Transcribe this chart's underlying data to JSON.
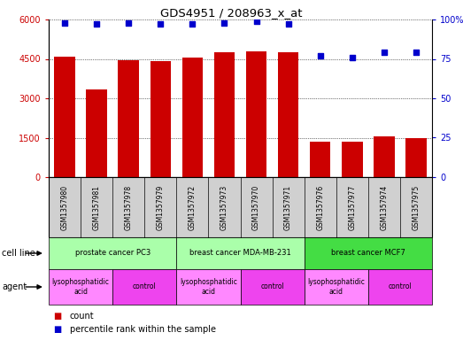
{
  "title": "GDS4951 / 208963_x_at",
  "samples": [
    "GSM1357980",
    "GSM1357981",
    "GSM1357978",
    "GSM1357979",
    "GSM1357972",
    "GSM1357973",
    "GSM1357970",
    "GSM1357971",
    "GSM1357976",
    "GSM1357977",
    "GSM1357974",
    "GSM1357975"
  ],
  "counts": [
    4600,
    3350,
    4450,
    4400,
    4550,
    4750,
    4800,
    4750,
    1350,
    1350,
    1550,
    1500
  ],
  "percentiles": [
    98,
    97,
    98,
    97,
    97,
    98,
    99,
    97,
    77,
    76,
    79,
    79
  ],
  "bar_color": "#cc0000",
  "dot_color": "#0000cc",
  "ylim_left": [
    0,
    6000
  ],
  "ylim_right": [
    0,
    100
  ],
  "yticks_left": [
    0,
    1500,
    3000,
    4500,
    6000
  ],
  "yticks_right": [
    0,
    25,
    50,
    75,
    100
  ],
  "cell_lines": [
    {
      "label": "prostate cancer PC3",
      "start": 0,
      "end": 4,
      "color": "#aaffaa"
    },
    {
      "label": "breast cancer MDA-MB-231",
      "start": 4,
      "end": 8,
      "color": "#aaffaa"
    },
    {
      "label": "breast cancer MCF7",
      "start": 8,
      "end": 12,
      "color": "#44dd44"
    }
  ],
  "agents": [
    {
      "label": "lysophosphatidic\nacid",
      "start": 0,
      "end": 2,
      "color": "#ff88ff"
    },
    {
      "label": "control",
      "start": 2,
      "end": 4,
      "color": "#ee44ee"
    },
    {
      "label": "lysophosphatidic\nacid",
      "start": 4,
      "end": 6,
      "color": "#ff88ff"
    },
    {
      "label": "control",
      "start": 6,
      "end": 8,
      "color": "#ee44ee"
    },
    {
      "label": "lysophosphatidic\nacid",
      "start": 8,
      "end": 10,
      "color": "#ff88ff"
    },
    {
      "label": "control",
      "start": 10,
      "end": 12,
      "color": "#ee44ee"
    }
  ],
  "legend_count_label": "count",
  "legend_percentile_label": "percentile rank within the sample",
  "cell_line_label": "cell line",
  "agent_label": "agent",
  "bg_color": "#ffffff",
  "sample_bg_color": "#d0d0d0",
  "grid_color": "#000000"
}
